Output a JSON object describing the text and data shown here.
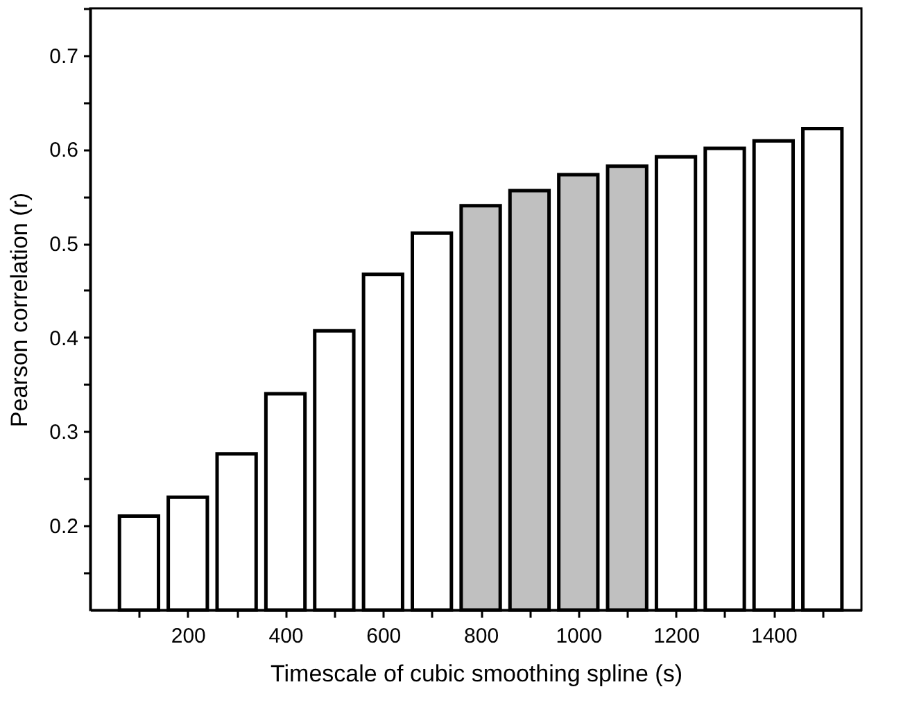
{
  "chart_data": {
    "type": "bar",
    "xlabel": "Timescale of cubic smoothing spline (s)",
    "ylabel": "Pearson correlation (r)",
    "x": [
      100,
      200,
      300,
      400,
      500,
      600,
      700,
      800,
      900,
      1000,
      1100,
      1200,
      1300,
      1400,
      1500
    ],
    "values": [
      0.21,
      0.23,
      0.276,
      0.34,
      0.407,
      0.467,
      0.511,
      0.54,
      0.556,
      0.573,
      0.582,
      0.592,
      0.601,
      0.609,
      0.622
    ],
    "colors": [
      "#ffffff",
      "#ffffff",
      "#ffffff",
      "#ffffff",
      "#ffffff",
      "#ffffff",
      "#ffffff",
      "#c0c0c0",
      "#c0c0c0",
      "#c0c0c0",
      "#c0c0c0",
      "#ffffff",
      "#ffffff",
      "#ffffff",
      "#ffffff"
    ],
    "xlim": [
      0,
      1580
    ],
    "xticks": [
      {
        "value": 100,
        "label": null
      },
      200,
      {
        "value": 300,
        "label": null
      },
      400,
      {
        "value": 500,
        "label": null
      },
      600,
      {
        "value": 700,
        "label": null
      },
      800,
      {
        "value": 900,
        "label": null
      },
      1000,
      {
        "value": 1100,
        "label": null
      },
      1200,
      {
        "value": 1300,
        "label": null
      },
      1400,
      {
        "value": 1500,
        "label": null
      }
    ],
    "ylim": [
      0.11,
      0.75
    ],
    "yticks": [
      {
        "value": 0.15,
        "label": null
      },
      0.2,
      {
        "value": 0.25,
        "label": null
      },
      0.3,
      {
        "value": 0.35,
        "label": null
      },
      0.4,
      {
        "value": 0.45,
        "label": null
      },
      0.5,
      {
        "value": 0.55,
        "label": null
      },
      0.6,
      {
        "value": 0.65,
        "label": null
      },
      0.7,
      {
        "value": 0.75,
        "label": null
      }
    ],
    "grid": false
  }
}
